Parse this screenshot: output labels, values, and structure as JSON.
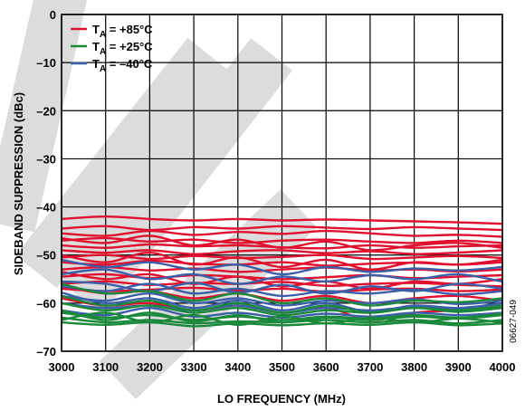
{
  "chart_data": {
    "type": "line",
    "xlabel": "LO FREQUENCY (MHz)",
    "ylabel": "SIDEBAND SUPPRESSION (dBc)",
    "xlim": [
      3000,
      4000
    ],
    "ylim": [
      -70,
      0
    ],
    "x_ticks": [
      3000,
      3100,
      3200,
      3300,
      3400,
      3500,
      3600,
      3700,
      3800,
      3900,
      4000
    ],
    "y_ticks": [
      0,
      -10,
      -20,
      -30,
      -40,
      -50,
      -60,
      -70
    ],
    "x_tick_labels": [
      "3000",
      "3100",
      "3200",
      "3300",
      "3400",
      "3500",
      "3600",
      "3700",
      "3800",
      "3900",
      "4000"
    ],
    "y_tick_labels": [
      "0",
      "–10",
      "–20",
      "–30",
      "–40",
      "–50",
      "–60",
      "–70"
    ],
    "grid": true,
    "legend_position": "top-left",
    "legend": [
      {
        "label": "T",
        "sub": "A",
        "suffix": " = +85°C",
        "color": "#e0102e"
      },
      {
        "label": "T",
        "sub": "A",
        "suffix": " = +25°C",
        "color": "#1a8a3a"
      },
      {
        "label": "T",
        "sub": "A",
        "suffix": " = –40°C",
        "color": "#3b5fa8"
      }
    ],
    "x": [
      3000,
      3100,
      3200,
      3300,
      3400,
      3500,
      3600,
      3700,
      3800,
      3900,
      4000
    ],
    "series_groups": [
      {
        "name": "T_A = +85°C",
        "color": "#e0102e",
        "series": [
          [
            -42.5,
            -42.0,
            -42.5,
            -42.8,
            -42.5,
            -42.8,
            -42.6,
            -42.8,
            -43.0,
            -43.2,
            -43.5
          ],
          [
            -44.5,
            -44.0,
            -44.8,
            -44.2,
            -44.5,
            -44.0,
            -44.3,
            -44.6,
            -44.2,
            -44.5,
            -44.8
          ],
          [
            -45.5,
            -46.0,
            -45.0,
            -45.8,
            -45.2,
            -45.6,
            -45.0,
            -45.5,
            -46.0,
            -45.8,
            -46.2
          ],
          [
            -47.0,
            -46.5,
            -47.2,
            -46.8,
            -47.5,
            -47.0,
            -46.8,
            -47.2,
            -47.5,
            -47.0,
            -47.5
          ],
          [
            -48.0,
            -48.5,
            -47.8,
            -48.2,
            -48.0,
            -48.4,
            -48.6,
            -48.0,
            -48.5,
            -48.2,
            -48.0
          ],
          [
            -49.0,
            -49.5,
            -49.0,
            -49.8,
            -49.2,
            -49.0,
            -49.6,
            -49.2,
            -49.8,
            -49.5,
            -49.0
          ],
          [
            -50.5,
            -50.0,
            -50.8,
            -50.2,
            -50.6,
            -50.4,
            -50.0,
            -50.8,
            -50.5,
            -50.2,
            -50.6
          ],
          [
            -51.5,
            -52.0,
            -51.2,
            -51.8,
            -52.0,
            -51.5,
            -52.2,
            -51.8,
            -51.6,
            -52.0,
            -51.5
          ],
          [
            -53.0,
            -52.5,
            -53.2,
            -52.8,
            -53.5,
            -53.0,
            -52.6,
            -53.2,
            -53.0,
            -53.4,
            -53.0
          ],
          [
            -54.5,
            -54.0,
            -54.8,
            -54.2,
            -54.5,
            -55.0,
            -54.6,
            -54.2,
            -54.8,
            -54.5,
            -54.2
          ],
          [
            -56.0,
            -55.5,
            -56.2,
            -55.8,
            -56.0,
            -55.6,
            -56.4,
            -56.0,
            -55.8,
            -56.2,
            -56.5
          ],
          [
            -57.0,
            -57.5,
            -57.2,
            -56.8,
            -57.4,
            -57.0,
            -57.6,
            -57.2,
            -57.0,
            -57.5,
            -57.2
          ],
          [
            -46.5,
            -47.5,
            -46.0,
            -48.0,
            -46.8,
            -48.5,
            -47.2,
            -49.0,
            -48.0,
            -47.5,
            -48.5
          ],
          [
            -50.0,
            -51.5,
            -49.5,
            -52.0,
            -50.5,
            -52.5,
            -51.0,
            -53.0,
            -51.5,
            -52.0,
            -51.0
          ],
          [
            -53.5,
            -55.0,
            -54.0,
            -56.0,
            -54.5,
            -56.5,
            -55.5,
            -57.0,
            -55.5,
            -56.0,
            -55.0
          ],
          [
            -56.5,
            -58.0,
            -57.5,
            -59.0,
            -58.0,
            -59.5,
            -58.5,
            -60.0,
            -59.0,
            -58.5,
            -59.5
          ],
          [
            -59.0,
            -60.5,
            -60.0,
            -61.5,
            -60.5,
            -62.0,
            -61.0,
            -63.5,
            -62.0,
            -61.5,
            -61.0
          ]
        ]
      },
      {
        "name": "T_A = –40°C",
        "color": "#3b5fa8",
        "series": [
          [
            -51.0,
            -52.5,
            -51.5,
            -53.0,
            -52.0,
            -54.0,
            -52.5,
            -53.5,
            -52.8,
            -53.2,
            -52.5
          ],
          [
            -54.0,
            -53.0,
            -55.0,
            -54.0,
            -56.0,
            -54.5,
            -55.5,
            -54.2,
            -55.0,
            -54.0,
            -55.5
          ],
          [
            -56.5,
            -57.5,
            -56.0,
            -58.0,
            -57.0,
            -58.5,
            -57.5,
            -58.0,
            -57.2,
            -58.2,
            -57.5
          ],
          [
            -58.5,
            -59.5,
            -58.0,
            -60.0,
            -59.0,
            -60.5,
            -59.5,
            -60.0,
            -59.2,
            -60.2,
            -59.5
          ],
          [
            -60.0,
            -61.0,
            -60.5,
            -61.5,
            -60.5,
            -62.0,
            -61.0,
            -61.5,
            -60.8,
            -61.2,
            -60.5
          ],
          [
            -61.5,
            -62.5,
            -61.0,
            -62.8,
            -62.0,
            -63.0,
            -62.2,
            -62.8,
            -62.0,
            -62.5,
            -62.0
          ],
          [
            -55.5,
            -56.0,
            -57.5,
            -55.8,
            -57.8,
            -56.2,
            -58.0,
            -56.5,
            -57.5,
            -56.0,
            -57.0
          ],
          [
            -57.8,
            -60.0,
            -59.0,
            -61.0,
            -59.5,
            -61.5,
            -60.0,
            -61.8,
            -60.5,
            -61.0,
            -60.0
          ]
        ]
      },
      {
        "name": "T_A = +25°C",
        "color": "#1a8a3a",
        "series": [
          [
            -60.0,
            -61.5,
            -60.5,
            -62.0,
            -61.0,
            -62.5,
            -61.5,
            -62.0,
            -61.0,
            -61.5,
            -60.5
          ],
          [
            -62.0,
            -63.0,
            -62.5,
            -63.5,
            -62.8,
            -63.5,
            -62.8,
            -63.2,
            -62.5,
            -63.0,
            -62.2
          ],
          [
            -63.0,
            -64.0,
            -63.5,
            -64.2,
            -63.8,
            -64.0,
            -63.5,
            -64.0,
            -63.5,
            -64.2,
            -63.5
          ],
          [
            -64.0,
            -64.5,
            -64.0,
            -64.8,
            -64.2,
            -64.6,
            -64.2,
            -64.5,
            -64.0,
            -64.6,
            -64.2
          ],
          [
            -63.5,
            -62.0,
            -64.0,
            -62.5,
            -64.5,
            -62.8,
            -64.2,
            -63.0,
            -64.0,
            -63.2,
            -64.0
          ],
          [
            -61.5,
            -63.5,
            -62.0,
            -63.8,
            -62.5,
            -64.0,
            -63.0,
            -63.5,
            -62.8,
            -63.2,
            -62.5
          ],
          [
            -58.5,
            -60.5,
            -59.5,
            -61.5,
            -60.0,
            -62.0,
            -60.5,
            -62.0,
            -61.0,
            -61.8,
            -61.0
          ],
          [
            -56.0,
            -58.0,
            -57.5,
            -59.5,
            -58.0,
            -60.0,
            -59.0,
            -60.5,
            -59.5,
            -59.8,
            -59.0
          ]
        ]
      }
    ]
  },
  "figure_id": "06627-049"
}
